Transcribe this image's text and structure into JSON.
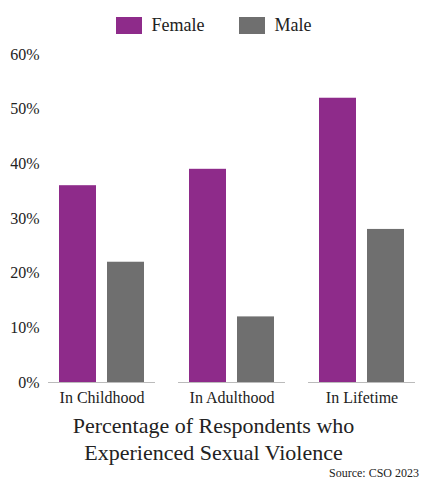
{
  "chart_data": {
    "type": "bar",
    "title": "Percentage of Respondents who Experienced Sexual Violence",
    "source": "Source: CSO 2023",
    "categories": [
      "In Childhood",
      "In Adulthood",
      "In Lifetime"
    ],
    "series": [
      {
        "name": "Female",
        "color": "#8e2b8a",
        "values": [
          36,
          39,
          52
        ]
      },
      {
        "name": "Male",
        "color": "#6f6f6f",
        "values": [
          22,
          12,
          28
        ]
      }
    ],
    "ylim": [
      0,
      60
    ],
    "yticks": [
      {
        "value": 0,
        "label": "0%"
      },
      {
        "value": 10,
        "label": "10%"
      },
      {
        "value": 20,
        "label": "20%"
      },
      {
        "value": 30,
        "label": "30%"
      },
      {
        "value": 40,
        "label": "40%"
      },
      {
        "value": 50,
        "label": "50%"
      },
      {
        "value": 60,
        "label": "60%"
      }
    ],
    "legend": "top",
    "grid": false
  }
}
